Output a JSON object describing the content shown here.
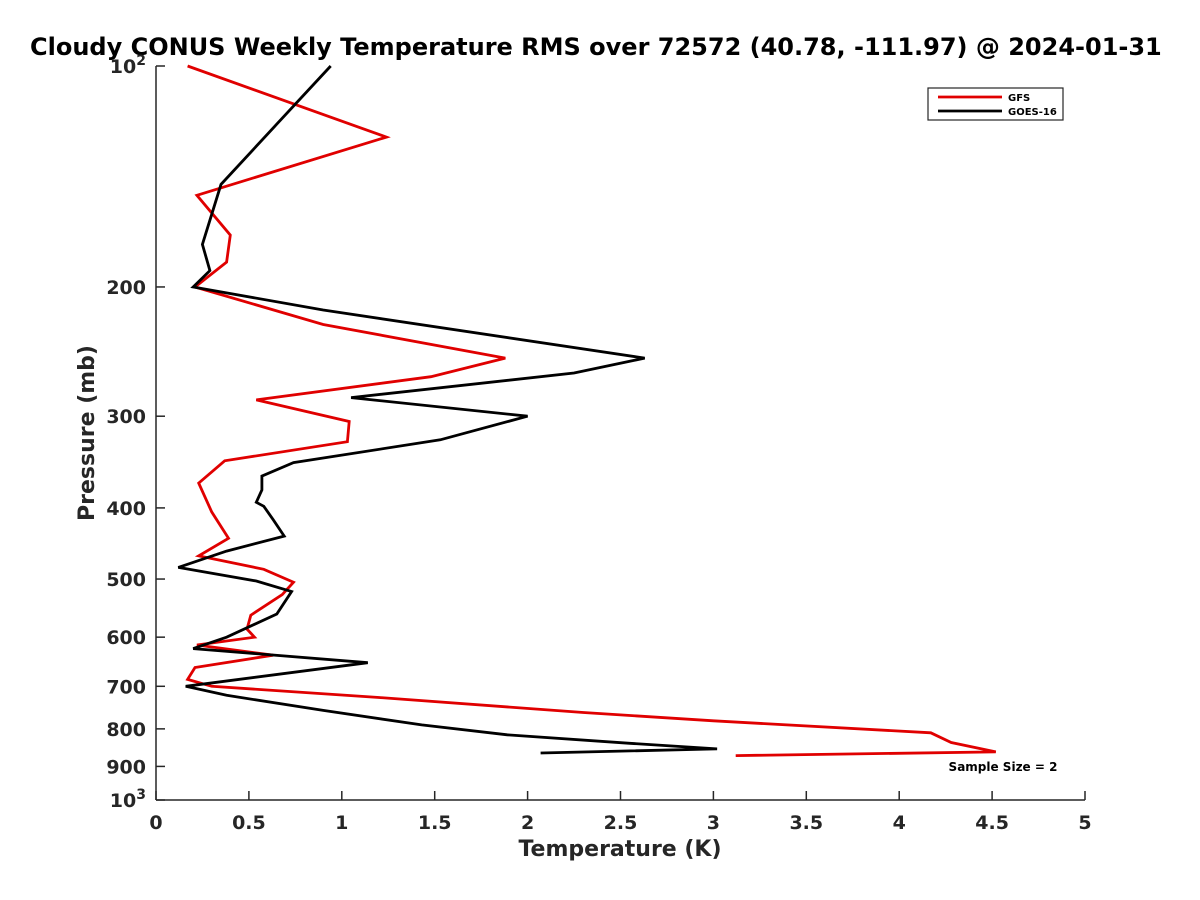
{
  "chart_data": {
    "type": "line",
    "title": "Cloudy CONUS Weekly Temperature RMS over 72572 (40.78, -111.97) @ 2024-01-31",
    "xlabel": "Temperature (K)",
    "ylabel": "Pressure (mb)",
    "xlim": [
      0,
      5
    ],
    "ylim": [
      100,
      1000
    ],
    "y_scale": "log",
    "y_reversed": true,
    "grid": false,
    "legend_position": "top-right",
    "x_ticks": [
      "0",
      "0.5",
      "1",
      "1.5",
      "2",
      "2.5",
      "3",
      "3.5",
      "4",
      "4.5",
      "5"
    ],
    "y_ticks": [
      {
        "value": 100,
        "base": "10",
        "exp": "2"
      },
      {
        "value": 200,
        "label": "200"
      },
      {
        "value": 300,
        "label": "300"
      },
      {
        "value": 400,
        "label": "400"
      },
      {
        "value": 500,
        "label": "500"
      },
      {
        "value": 600,
        "label": "600"
      },
      {
        "value": 700,
        "label": "700"
      },
      {
        "value": 800,
        "label": "800"
      },
      {
        "value": 900,
        "label": "900"
      },
      {
        "value": 1000,
        "base": "10",
        "exp": "3"
      }
    ],
    "series": [
      {
        "name": "GFS",
        "color": "#e00000",
        "points": [
          [
            0.17,
            100
          ],
          [
            1.24,
            125
          ],
          [
            0.22,
            150
          ],
          [
            0.4,
            170
          ],
          [
            0.38,
            185
          ],
          [
            0.21,
            200
          ],
          [
            0.9,
            225
          ],
          [
            1.88,
            250
          ],
          [
            1.48,
            265
          ],
          [
            0.54,
            285
          ],
          [
            1.04,
            305
          ],
          [
            1.03,
            325
          ],
          [
            0.37,
            345
          ],
          [
            0.23,
            370
          ],
          [
            0.3,
            405
          ],
          [
            0.39,
            440
          ],
          [
            0.23,
            465
          ],
          [
            0.58,
            485
          ],
          [
            0.74,
            505
          ],
          [
            0.68,
            525
          ],
          [
            0.51,
            560
          ],
          [
            0.49,
            585
          ],
          [
            0.53,
            600
          ],
          [
            0.22,
            615
          ],
          [
            0.63,
            635
          ],
          [
            0.21,
            660
          ],
          [
            0.17,
            685
          ],
          [
            0.3,
            700
          ],
          [
            1.2,
            725
          ],
          [
            2.3,
            760
          ],
          [
            3.0,
            780
          ],
          [
            4.17,
            810
          ],
          [
            4.28,
            835
          ],
          [
            4.52,
            860
          ],
          [
            3.12,
            870
          ]
        ]
      },
      {
        "name": "GOES-16",
        "color": "#000000",
        "points": [
          [
            0.94,
            100
          ],
          [
            0.65,
            120
          ],
          [
            0.35,
            145
          ],
          [
            0.25,
            175
          ],
          [
            0.29,
            190
          ],
          [
            0.2,
            200
          ],
          [
            0.9,
            215
          ],
          [
            2.63,
            250
          ],
          [
            2.25,
            262
          ],
          [
            1.05,
            283
          ],
          [
            2.0,
            300
          ],
          [
            1.53,
            323
          ],
          [
            0.74,
            347
          ],
          [
            0.57,
            362
          ],
          [
            0.57,
            378
          ],
          [
            0.54,
            393
          ],
          [
            0.58,
            398
          ],
          [
            0.63,
            415
          ],
          [
            0.69,
            437
          ],
          [
            0.38,
            458
          ],
          [
            0.12,
            482
          ],
          [
            0.54,
            503
          ],
          [
            0.73,
            520
          ],
          [
            0.65,
            558
          ],
          [
            0.38,
            600
          ],
          [
            0.2,
            622
          ],
          [
            1.14,
            650
          ],
          [
            0.16,
            700
          ],
          [
            0.38,
            720
          ],
          [
            0.9,
            755
          ],
          [
            1.43,
            790
          ],
          [
            1.89,
            815
          ],
          [
            2.55,
            837
          ],
          [
            3.02,
            852
          ],
          [
            2.07,
            863
          ]
        ]
      }
    ],
    "annotation": "Sample Size = 2"
  }
}
